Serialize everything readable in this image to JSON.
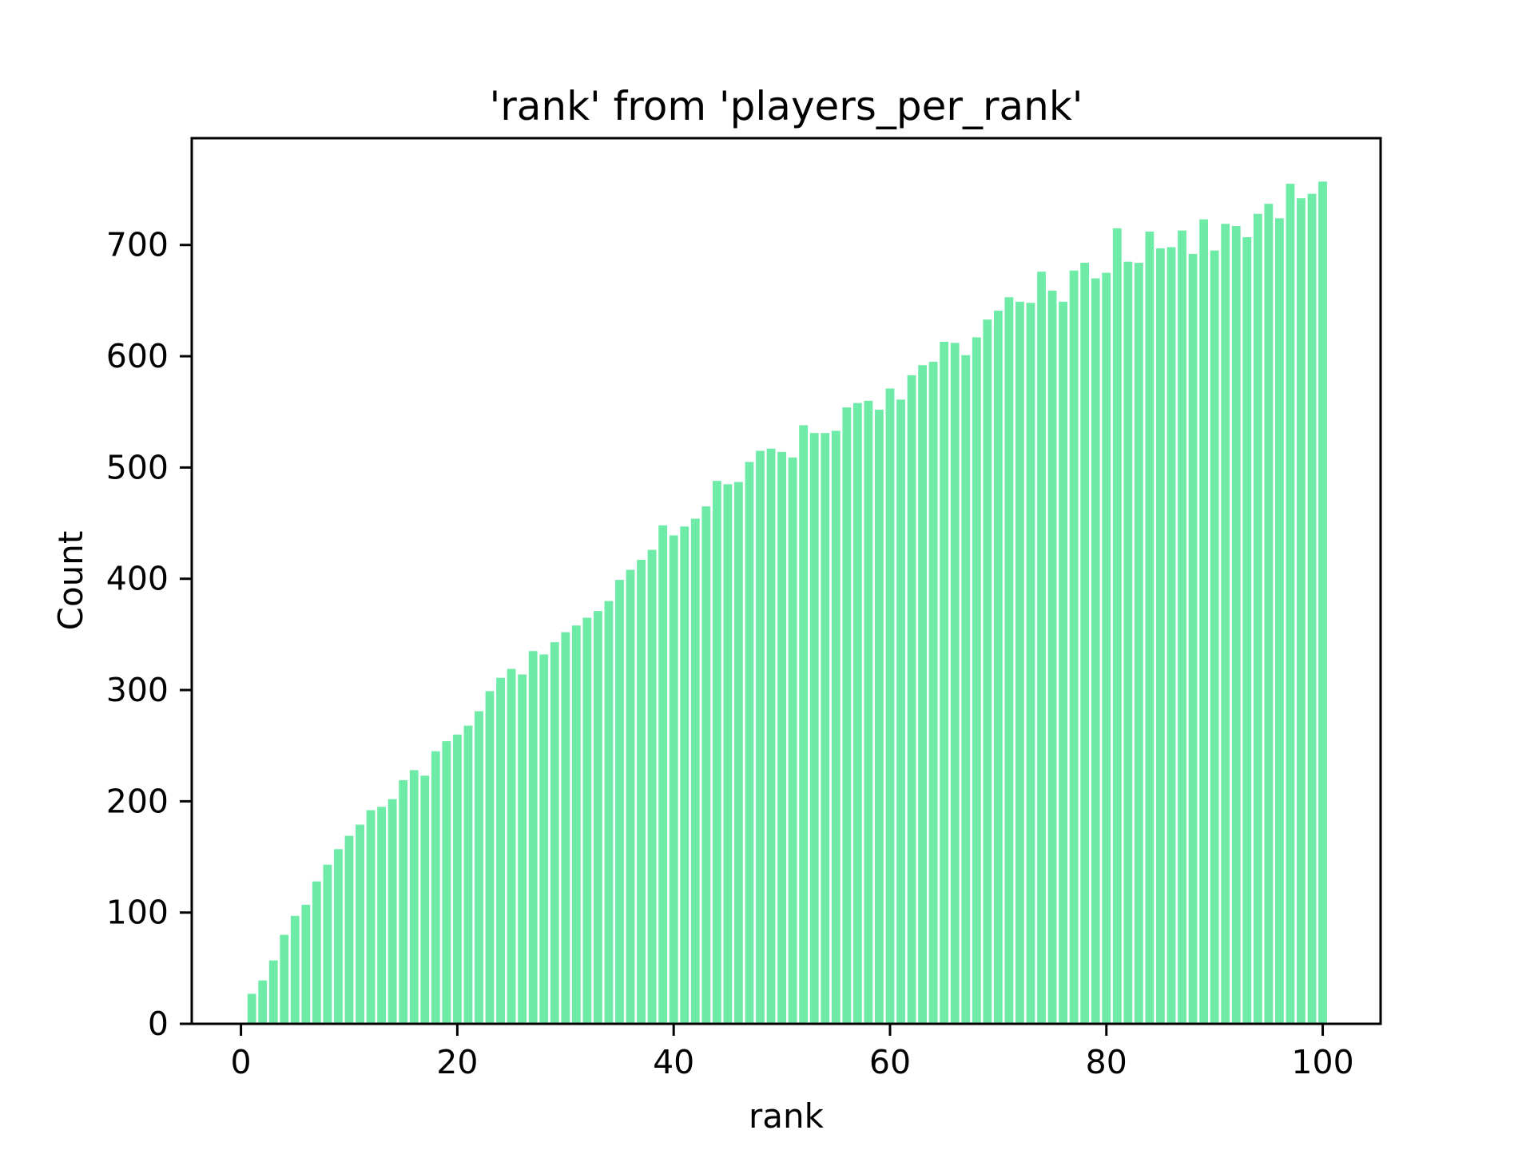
{
  "window": {
    "background_color": "#ffffff",
    "text_color": "#000000"
  },
  "chart_data": {
    "type": "bar",
    "title": "'rank' from 'players_per_rank'",
    "xlabel": "rank",
    "ylabel": "Count",
    "bar_color": "#6feba8",
    "axis_color": "#000000",
    "grid": false,
    "legend": null,
    "bar_width": 0.8,
    "xlim": [
      -4.55,
      105.35
    ],
    "ylim": [
      0,
      796
    ],
    "x_ticks": [
      0,
      20,
      40,
      60,
      80,
      100
    ],
    "y_ticks": [
      0,
      100,
      200,
      300,
      400,
      500,
      600,
      700
    ],
    "ranks": [
      1,
      2,
      3,
      4,
      5,
      6,
      7,
      8,
      9,
      10,
      11,
      12,
      13,
      14,
      15,
      16,
      17,
      18,
      19,
      20,
      21,
      22,
      23,
      24,
      25,
      26,
      27,
      28,
      29,
      30,
      31,
      32,
      33,
      34,
      35,
      36,
      37,
      38,
      39,
      40,
      41,
      42,
      43,
      44,
      45,
      46,
      47,
      48,
      49,
      50,
      51,
      52,
      53,
      54,
      55,
      56,
      57,
      58,
      59,
      60,
      61,
      62,
      63,
      64,
      65,
      66,
      67,
      68,
      69,
      70,
      71,
      72,
      73,
      74,
      75,
      76,
      77,
      78,
      79,
      80,
      81,
      82,
      83,
      84,
      85,
      86,
      87,
      88,
      89,
      90,
      91,
      92,
      93,
      94,
      95,
      96,
      97,
      98,
      99,
      100
    ],
    "values": [
      27,
      39,
      57,
      80,
      97,
      107,
      128,
      143,
      157,
      169,
      179,
      192,
      195,
      202,
      219,
      228,
      223,
      245,
      254,
      260,
      268,
      281,
      299,
      311,
      319,
      314,
      335,
      332,
      343,
      352,
      358,
      365,
      371,
      380,
      399,
      408,
      417,
      426,
      448,
      439,
      447,
      454,
      465,
      488,
      485,
      487,
      505,
      515,
      517,
      514,
      509,
      538,
      531,
      531,
      533,
      554,
      558,
      560,
      552,
      571,
      561,
      583,
      592,
      595,
      613,
      612,
      601,
      617,
      633,
      641,
      653,
      649,
      648,
      676,
      659,
      649,
      677,
      684,
      670,
      675,
      715,
      685,
      684,
      712,
      697,
      698,
      713,
      692,
      723,
      695,
      719,
      717,
      707,
      728,
      737,
      724,
      755,
      742,
      746,
      757
    ]
  }
}
